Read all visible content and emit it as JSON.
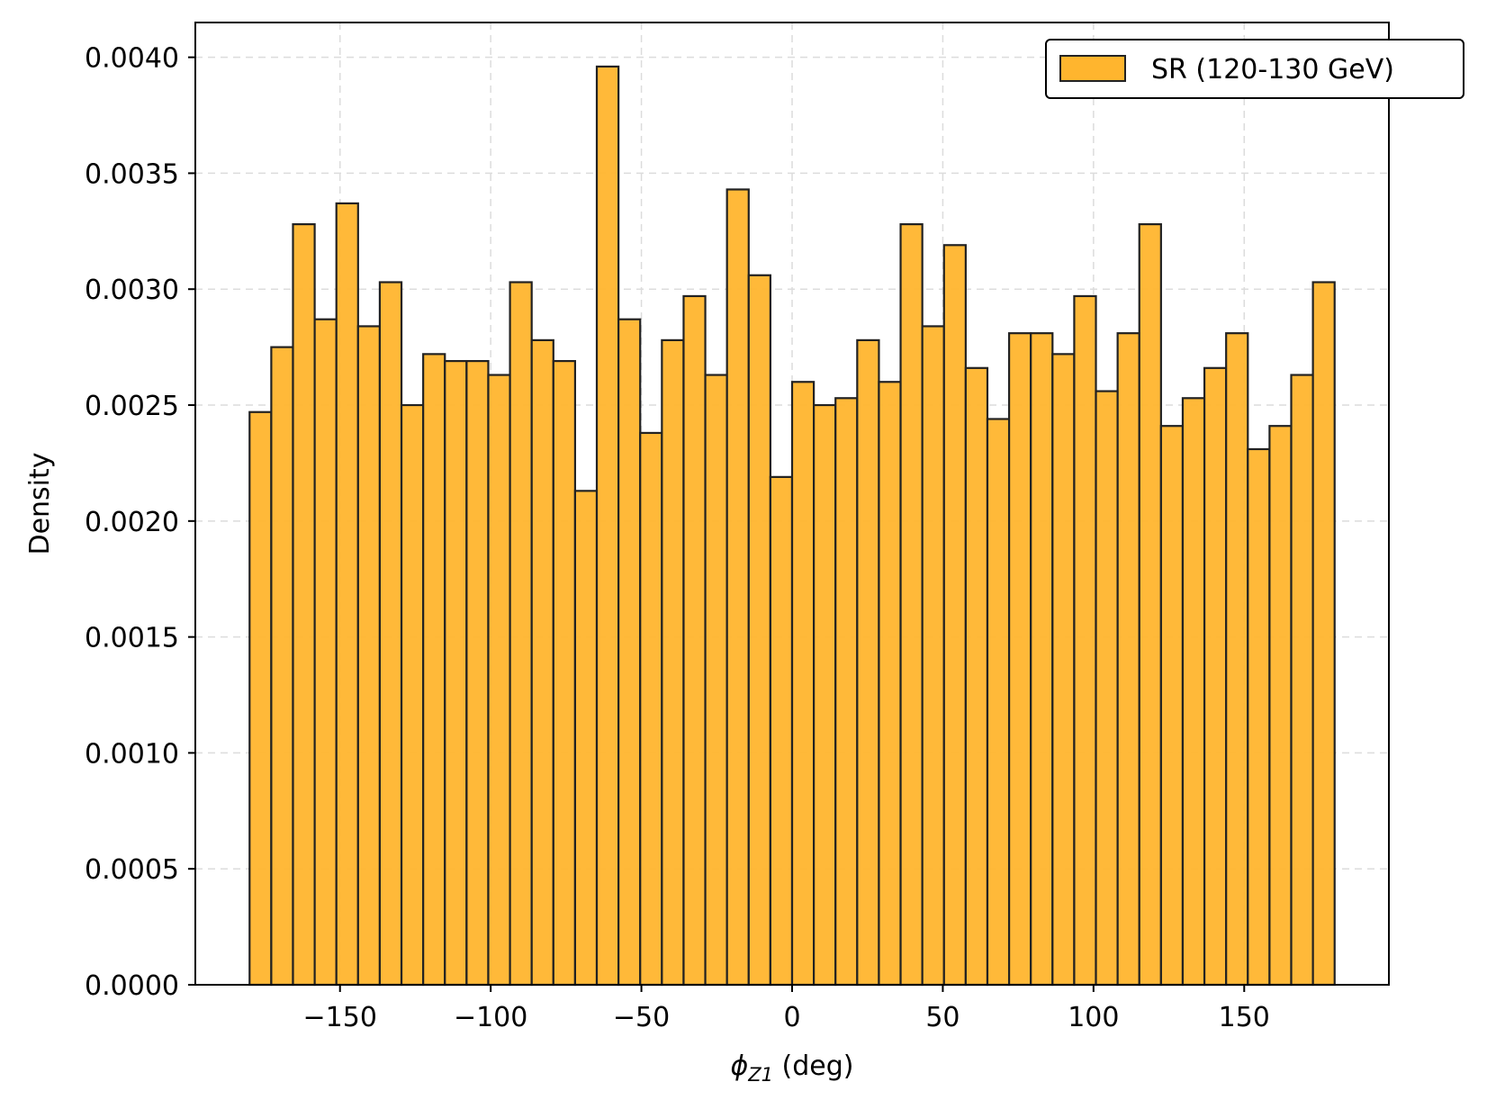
{
  "chart_data": {
    "type": "bar",
    "subtype": "histogram",
    "title": "",
    "xlabel": {
      "symbol": "ϕ",
      "subscript": "Z1",
      "suffix": " (deg)"
    },
    "ylabel": "Density",
    "xlim": [
      -198,
      198
    ],
    "ylim": [
      0,
      0.00415
    ],
    "grid": true,
    "legend_position": "top-right",
    "bar_color": "#FFB52E",
    "edge_color": "#222222",
    "x_ticks": [
      -150,
      -100,
      -50,
      0,
      50,
      100,
      150
    ],
    "x_tick_labels": [
      "−150",
      "−100",
      "−50",
      "0",
      "50",
      "100",
      "150"
    ],
    "y_ticks": [
      0,
      0.0005,
      0.001,
      0.0015,
      0.002,
      0.0025,
      0.003,
      0.0035,
      0.004
    ],
    "y_tick_labels": [
      "0.0000",
      "0.0005",
      "0.0010",
      "0.0015",
      "0.0020",
      "0.0025",
      "0.0030",
      "0.0035",
      "0.0040"
    ],
    "bin_edges_start": -180,
    "bin_width": 7.2,
    "series": [
      {
        "name": "SR (120-130 GeV)",
        "values": [
          0.00247,
          0.00275,
          0.00328,
          0.00287,
          0.00337,
          0.00284,
          0.00303,
          0.0025,
          0.00272,
          0.00269,
          0.00269,
          0.00263,
          0.00303,
          0.00278,
          0.00269,
          0.00213,
          0.00396,
          0.00287,
          0.00238,
          0.00278,
          0.00297,
          0.00263,
          0.00343,
          0.00306,
          0.00219,
          0.0026,
          0.0025,
          0.00253,
          0.00278,
          0.0026,
          0.00328,
          0.00284,
          0.00319,
          0.00266,
          0.00244,
          0.00281,
          0.00281,
          0.00272,
          0.00297,
          0.00256,
          0.00281,
          0.00328,
          0.00241,
          0.00253,
          0.00266,
          0.00281,
          0.00231,
          0.00241,
          0.00263,
          0.00303
        ]
      }
    ]
  }
}
